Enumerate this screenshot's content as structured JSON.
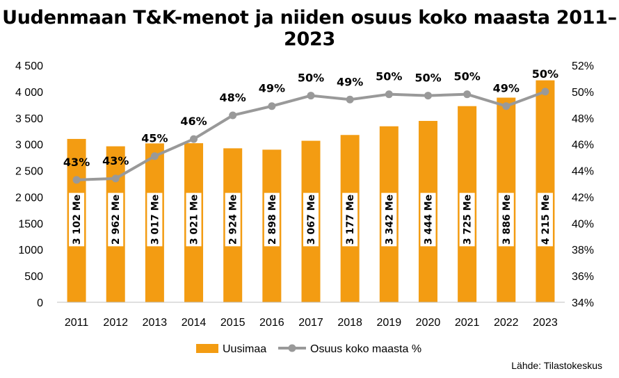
{
  "title": "Uudenmaan T&K-menot ja niiden osuus koko maasta 2011–2023",
  "source": "Lähde: Tilastokeskus",
  "chart_data": {
    "type": "bar+line",
    "title": "Uudenmaan T&K-menot ja niiden osuus koko maasta 2011–2023",
    "categories": [
      "2011",
      "2012",
      "2013",
      "2014",
      "2015",
      "2016",
      "2017",
      "2018",
      "2019",
      "2020",
      "2021",
      "2022",
      "2023"
    ],
    "series": [
      {
        "name": "Uusimaa",
        "type": "bar",
        "axis": "left",
        "color": "#F39C12",
        "values": [
          3102,
          2962,
          3017,
          3021,
          2924,
          2898,
          3067,
          3177,
          3342,
          3444,
          3725,
          3886,
          4215
        ],
        "labels": [
          "3 102 Me",
          "2 962 Me",
          "3 017 Me",
          "3 021 Me",
          "2 924 Me",
          "2 898 Me",
          "3 067 Me",
          "3 177 Me",
          "3 342 Me",
          "3 444 Me",
          "3 725 Me",
          "3 886 Me",
          "4 215 Me"
        ]
      },
      {
        "name": "Osuus koko maasta %",
        "type": "line",
        "axis": "right",
        "color": "#999999",
        "values": [
          43.3,
          43.4,
          45.1,
          46.4,
          48.2,
          48.9,
          49.7,
          49.4,
          49.8,
          49.7,
          49.8,
          48.9,
          50.0
        ],
        "labels": [
          "43%",
          "43%",
          "45%",
          "46%",
          "48%",
          "49%",
          "50%",
          "49%",
          "50%",
          "50%",
          "50%",
          "49%",
          "50%"
        ]
      }
    ],
    "y_left": {
      "range": [
        0,
        4500
      ],
      "ticks": [
        0,
        500,
        1000,
        1500,
        2000,
        2500,
        3000,
        3500,
        4000,
        4500
      ],
      "tick_labels": [
        "0",
        "500",
        "1000",
        "1500",
        "2 000",
        "2 500",
        "3 000",
        "3 500",
        "4 000",
        "4 500"
      ]
    },
    "y_right": {
      "range": [
        34,
        52
      ],
      "ticks": [
        34,
        36,
        38,
        40,
        42,
        44,
        46,
        48,
        50,
        52
      ],
      "tick_labels": [
        "34%",
        "36%",
        "38%",
        "40%",
        "42%",
        "44%",
        "46%",
        "48%",
        "50%",
        "52%"
      ]
    },
    "grid": false,
    "legend_position": "bottom"
  }
}
